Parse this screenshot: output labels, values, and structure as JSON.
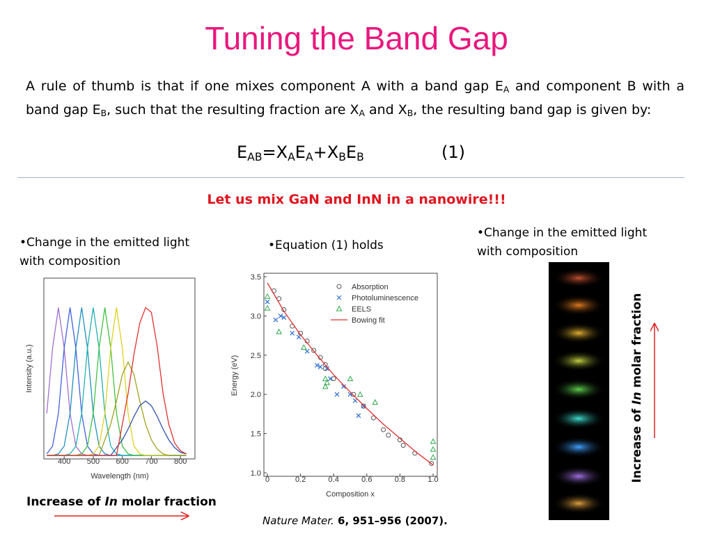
{
  "title": "Tuning the Band Gap",
  "paragraph": [
    "A rule of thumb is that if one mixes component A with a band gap E",
    "A",
    " and component B with a band gap E",
    "B",
    ", such that the resulting fraction are X",
    "A",
    " and X",
    "B",
    ", the resulting band gap is given by:"
  ],
  "equation": [
    "E",
    "AB",
    "=X",
    "A",
    "E",
    "A",
    "+X",
    "B",
    "E",
    "B"
  ],
  "equation_number": "(1)",
  "highlight": "Let us mix GaN and InN in a nanowire!!!",
  "left_bullet": "•Change in the emitted light with composition",
  "middle_bullet": "•Equation (1) holds",
  "right_bullet": "•Change in the emitted light with composition",
  "left_caption": [
    "Increase of ",
    "In",
    " molar fraction"
  ],
  "right_caption": [
    "Increase of ",
    "In",
    " molar fraction"
  ],
  "citation": [
    "Nature Mater.",
    " 6, 951–956 (2007)."
  ],
  "chart_data": [
    {
      "type": "line",
      "xlabel": "Wavelength (nm)",
      "ylabel": "Intensity (a.u.)",
      "xlim": [
        330,
        850
      ],
      "ylim": [
        0,
        1.05
      ],
      "xticks": [
        400,
        500,
        600,
        700,
        800
      ],
      "x": [
        340,
        360,
        380,
        400,
        420,
        440,
        460,
        480,
        500,
        520,
        540,
        560,
        580,
        600,
        620,
        640,
        660,
        680,
        700,
        720,
        740,
        760,
        780,
        800,
        820
      ],
      "series": [
        {
          "color": "#a070d0",
          "values": [
            0.27,
            0.69,
            0.95,
            0.69,
            0.27,
            0.06,
            0.01,
            0,
            0,
            0,
            0,
            0,
            0,
            0,
            0,
            0,
            0,
            0,
            0,
            0,
            0,
            0,
            0,
            0,
            0
          ]
        },
        {
          "color": "#4060e0",
          "values": [
            0.01,
            0.06,
            0.27,
            0.69,
            0.95,
            0.69,
            0.27,
            0.06,
            0.01,
            0,
            0,
            0,
            0,
            0,
            0,
            0,
            0,
            0,
            0,
            0,
            0,
            0,
            0,
            0,
            0
          ]
        },
        {
          "color": "#2090c0",
          "values": [
            0,
            0,
            0.01,
            0.06,
            0.27,
            0.69,
            0.95,
            0.69,
            0.27,
            0.06,
            0.01,
            0,
            0,
            0,
            0,
            0,
            0,
            0,
            0,
            0,
            0,
            0,
            0,
            0,
            0
          ]
        },
        {
          "color": "#20b0b0",
          "values": [
            0,
            0,
            0,
            0,
            0.01,
            0.06,
            0.27,
            0.69,
            0.95,
            0.69,
            0.27,
            0.06,
            0.01,
            0,
            0,
            0,
            0,
            0,
            0,
            0,
            0,
            0,
            0,
            0,
            0
          ]
        },
        {
          "color": "#40c040",
          "values": [
            0,
            0,
            0,
            0,
            0,
            0,
            0.01,
            0.06,
            0.27,
            0.69,
            0.95,
            0.69,
            0.27,
            0.06,
            0.01,
            0,
            0,
            0,
            0,
            0,
            0,
            0,
            0,
            0,
            0
          ]
        },
        {
          "color": "#e0d020",
          "values": [
            0,
            0,
            0,
            0,
            0,
            0,
            0,
            0,
            0.01,
            0.06,
            0.27,
            0.69,
            0.95,
            0.69,
            0.27,
            0.06,
            0.01,
            0,
            0,
            0,
            0,
            0,
            0,
            0,
            0
          ]
        },
        {
          "color": "#a0a020",
          "values": [
            0,
            0,
            0,
            0,
            0,
            0,
            0,
            0,
            0,
            0,
            0.1,
            0.2,
            0.35,
            0.52,
            0.6,
            0.52,
            0.35,
            0.2,
            0.1,
            0.04,
            0.01,
            0,
            0,
            0,
            0
          ]
        },
        {
          "color": "#3050b0",
          "values": [
            0,
            0,
            0,
            0,
            0,
            0,
            0,
            0,
            0,
            0,
            0,
            0,
            0.05,
            0.1,
            0.17,
            0.25,
            0.32,
            0.35,
            0.32,
            0.25,
            0.17,
            0.1,
            0.05,
            0.02,
            0.01
          ]
        },
        {
          "color": "#e03030",
          "values": [
            0,
            0,
            0,
            0,
            0,
            0,
            0,
            0,
            0,
            0,
            0,
            0,
            0,
            0.2,
            0.4,
            0.65,
            0.85,
            0.95,
            0.92,
            0.7,
            0.4,
            0.2,
            0.08,
            0.03,
            0.01
          ]
        }
      ]
    },
    {
      "type": "scatter",
      "xlabel": "Composition x",
      "ylabel": "Energy (eV)",
      "xlim": [
        0,
        1
      ],
      "ylim": [
        1,
        3.5
      ],
      "xticks": [
        0,
        0.2,
        0.4,
        0.6,
        0.8,
        {
          "value": 1,
          "label": "1.0"
        }
      ],
      "yticks": [
        {
          "value": 1,
          "label": "1.0"
        },
        1.5,
        {
          "value": 2,
          "label": "2.0"
        },
        2.5,
        {
          "value": 3,
          "label": "3.0"
        },
        3.5
      ],
      "series": [
        {
          "name": "Absorption",
          "type": "scatter",
          "marker": "o",
          "color": "#555555",
          "x": [
            0.04,
            0.07,
            0.1,
            0.15,
            0.2,
            0.24,
            0.28,
            0.32,
            0.35,
            0.35,
            0.4,
            0.52,
            0.58,
            0.64,
            0.7,
            0.73,
            0.8,
            0.82,
            0.89,
            0.99
          ],
          "values": [
            3.32,
            3.22,
            3.08,
            2.87,
            2.78,
            2.68,
            2.56,
            2.47,
            2.38,
            2.33,
            2.2,
            2.0,
            1.85,
            1.7,
            1.55,
            1.48,
            1.42,
            1.35,
            1.25,
            1.12
          ]
        },
        {
          "name": "Photoluminescence",
          "type": "scatter",
          "marker": "x",
          "color": "#2f6fd0",
          "x": [
            0,
            0.05,
            0.08,
            0.1,
            0.15,
            0.19,
            0.24,
            0.3,
            0.32,
            0.36,
            0.38,
            0.42,
            0.46,
            0.5,
            0.53,
            0.55,
            0.58
          ],
          "values": [
            3.18,
            2.95,
            3.0,
            2.98,
            2.78,
            2.73,
            2.55,
            2.37,
            2.35,
            2.33,
            2.2,
            2.0,
            2.1,
            2.0,
            1.92,
            1.73,
            1.85
          ]
        },
        {
          "name": "EELS",
          "type": "scatter",
          "marker": "^",
          "color": "#2ea84a",
          "x": [
            0,
            0,
            0.07,
            0.22,
            0.35,
            0.35,
            0.36,
            0.5,
            0.56,
            0.65,
            1,
            1,
            1
          ],
          "values": [
            3.25,
            3.1,
            2.8,
            2.6,
            2.2,
            2.1,
            2.15,
            2.2,
            2.0,
            1.9,
            1.4,
            1.3,
            1.2
          ]
        },
        {
          "name": "Bowing fit",
          "type": "line",
          "color": "#e03030",
          "x": [
            0,
            0.1,
            0.2,
            0.3,
            0.4,
            0.5,
            0.6,
            0.7,
            0.8,
            0.9,
            1
          ],
          "values": [
            3.42,
            3.06,
            2.76,
            2.5,
            2.25,
            2.03,
            1.82,
            1.62,
            1.44,
            1.26,
            1.1
          ]
        }
      ]
    }
  ]
}
